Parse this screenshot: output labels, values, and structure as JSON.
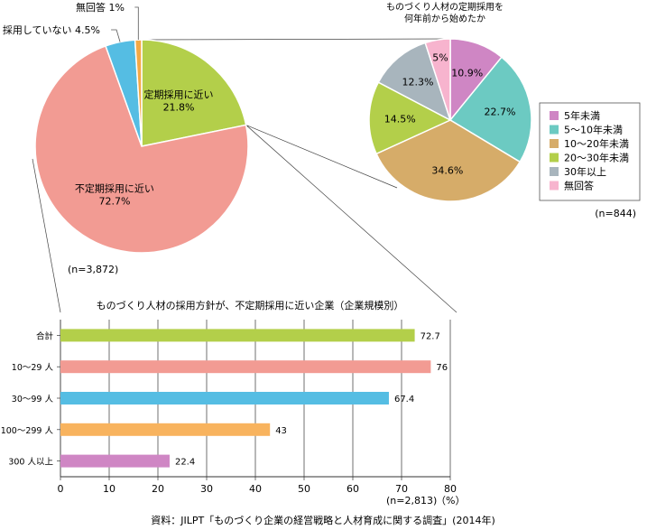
{
  "chart_data": [
    {
      "type": "pie",
      "slices": [
        {
          "label": "定期採用に近い",
          "value": 21.8,
          "color": "#b3cf4a"
        },
        {
          "label": "不定期採用に近い",
          "value": 72.7,
          "color": "#f29b93"
        },
        {
          "label": "採用していない",
          "value": 4.5,
          "color": "#55bde3"
        },
        {
          "label": "無回答",
          "value": 1,
          "color": "#f4a946"
        }
      ],
      "n_label": "(n=3,872)",
      "outside_labels": [
        {
          "text": "無回答 1%",
          "slice": "無回答"
        },
        {
          "text": "採用していない 4.5%",
          "slice": "採用していない"
        }
      ]
    },
    {
      "type": "pie",
      "title": [
        "ものづくり人材の定期採用を",
        "何年前から始めたか"
      ],
      "slices": [
        {
          "label": "5年未満",
          "value": 10.9,
          "color": "#cf86c4"
        },
        {
          "label": "5～10年未満",
          "value": 22.7,
          "color": "#6ccac2"
        },
        {
          "label": "10～20年未満",
          "value": 34.6,
          "color": "#d6ac69"
        },
        {
          "label": "20～30年未満",
          "value": 14.5,
          "color": "#b3cf4a"
        },
        {
          "label": "30年以上",
          "value": 12.3,
          "color": "#a8b5bd"
        },
        {
          "label": "無回答",
          "value": 5,
          "color": "#f7b4ce"
        }
      ],
      "n_label": "(n=844)",
      "legend": "right"
    },
    {
      "type": "bar",
      "orientation": "horizontal",
      "title": "ものづくり人材の採用方針が、不定期採用に近い企業（企業規模別）",
      "categories": [
        "合計",
        "10～29 人",
        "30～99 人",
        "100～299 人",
        "300 人以上"
      ],
      "values": [
        72.7,
        76,
        67.4,
        43,
        22.4
      ],
      "colors": [
        "#b3cf4a",
        "#f29b93",
        "#55bde3",
        "#f8b35e",
        "#cf86c4"
      ],
      "xlim": [
        0,
        80
      ],
      "xticks": [
        0,
        10,
        20,
        30,
        40,
        50,
        60,
        70,
        80
      ],
      "n_label": "(n=2,813)",
      "unit": "（%）",
      "grid": true
    }
  ],
  "source": "資料：JILPT「ものづくり企業の経営戦略と人材育成に関する調査」(2014年)"
}
